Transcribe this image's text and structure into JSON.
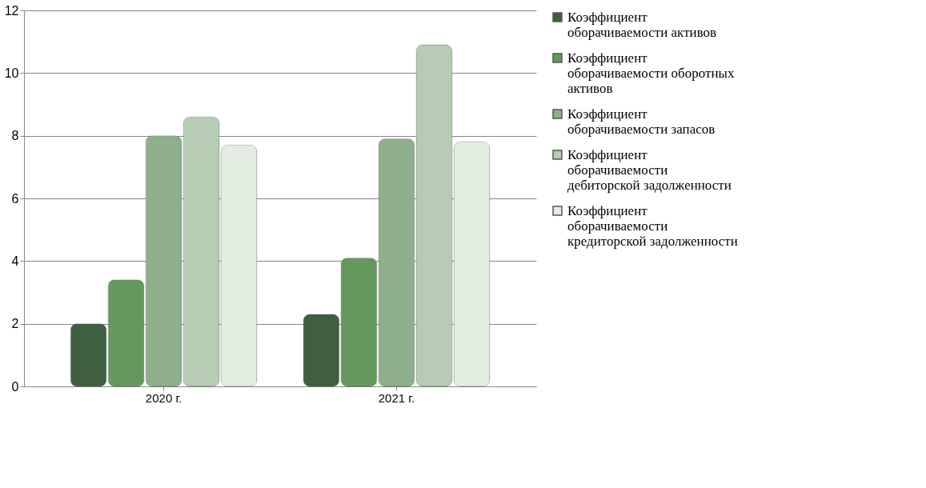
{
  "chart_data": {
    "type": "bar",
    "categories": [
      "2020 г.",
      "2021 г."
    ],
    "series": [
      {
        "name": "Коэффициент оборачиваемости активов",
        "color": "#3f5f3f",
        "values": [
          2.0,
          2.3
        ]
      },
      {
        "name": "Коэффициент оборачиваемости оборотных активов",
        "color": "#64995e",
        "values": [
          3.4,
          4.1
        ]
      },
      {
        "name": "Коэффициент оборачиваемости запасов",
        "color": "#8db08b",
        "values": [
          8.0,
          7.9
        ]
      },
      {
        "name": "Коэффициент оборачиваемости дебиторской задолженности",
        "color": "#b5ccb2",
        "values": [
          8.6,
          10.9
        ]
      },
      {
        "name": "Коэффициент оборачиваемости кредиторской задолженности",
        "color": "#e3ede1",
        "values": [
          7.7,
          7.8
        ]
      }
    ],
    "ylim": [
      0,
      12
    ],
    "yticks": [
      0,
      2,
      4,
      6,
      8,
      10,
      12
    ],
    "grid": "y",
    "legend": "right"
  }
}
